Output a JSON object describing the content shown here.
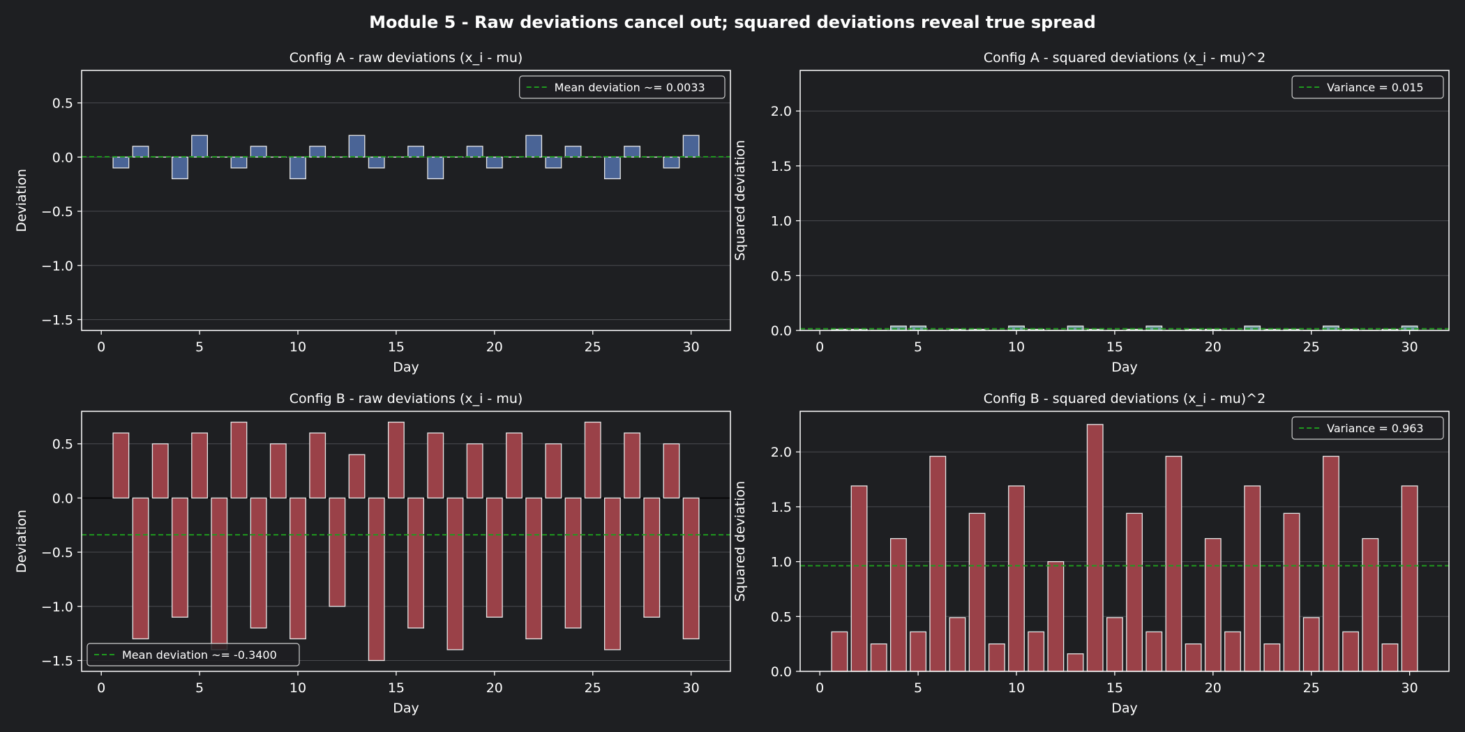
{
  "figure_title": "Module 5 - Raw deviations cancel out; squared deviations reveal true spread",
  "colors": {
    "background": "#1e1f22",
    "config_a_bar": "#4a6496",
    "config_a_sq_bar": "#6f9aa0",
    "config_b_bar": "#9a4148",
    "mean_line": "#1f9a1f",
    "text": "#ffffff",
    "grid": "#4a4b50"
  },
  "chart_data": [
    {
      "type": "bar",
      "title": "Config A - raw deviations (x_i - mu)",
      "xlabel": "Day",
      "ylabel": "Deviation",
      "xlim": [
        -1,
        32
      ],
      "ylim": [
        -1.6,
        0.8
      ],
      "xticks": [
        0,
        5,
        10,
        15,
        20,
        25,
        30
      ],
      "yticks": [
        -1.5,
        -1.0,
        -0.5,
        0.0,
        0.5
      ],
      "ytick_labels": [
        "−1.5",
        "−1.0",
        "−0.5",
        "0.0",
        "0.5"
      ],
      "grid": true,
      "legend_position": "top-right",
      "x": [
        1,
        2,
        3,
        4,
        5,
        6,
        7,
        8,
        9,
        10,
        11,
        12,
        13,
        14,
        15,
        16,
        17,
        18,
        19,
        20,
        21,
        22,
        23,
        24,
        25,
        26,
        27,
        28,
        29,
        30
      ],
      "values": [
        -0.1,
        0.1,
        0,
        -0.2,
        0.2,
        0,
        -0.1,
        0.1,
        0,
        -0.2,
        0.1,
        0,
        0.2,
        -0.1,
        0,
        0.1,
        -0.2,
        0,
        0.1,
        -0.1,
        0,
        0.2,
        -0.1,
        0.1,
        0,
        -0.2,
        0.1,
        0,
        -0.1,
        0.2
      ],
      "hline": {
        "label": "Mean deviation ~= 0.0033",
        "value": 0.0033
      }
    },
    {
      "type": "bar",
      "title": "Config A - squared deviations (x_i - mu)^2",
      "xlabel": "Day",
      "ylabel": "Squared deviation",
      "xlim": [
        -1,
        32
      ],
      "ylim": [
        0,
        2.37
      ],
      "xticks": [
        0,
        5,
        10,
        15,
        20,
        25,
        30
      ],
      "yticks": [
        0.0,
        0.5,
        1.0,
        1.5,
        2.0
      ],
      "ytick_labels": [
        "0.0",
        "0.5",
        "1.0",
        "1.5",
        "2.0"
      ],
      "grid": true,
      "legend_position": "top-right",
      "x": [
        1,
        2,
        3,
        4,
        5,
        6,
        7,
        8,
        9,
        10,
        11,
        12,
        13,
        14,
        15,
        16,
        17,
        18,
        19,
        20,
        21,
        22,
        23,
        24,
        25,
        26,
        27,
        28,
        29,
        30
      ],
      "values": [
        0.01,
        0.01,
        0,
        0.04,
        0.04,
        0,
        0.01,
        0.01,
        0,
        0.04,
        0.01,
        0,
        0.04,
        0.01,
        0,
        0.01,
        0.04,
        0,
        0.01,
        0.01,
        0,
        0.04,
        0.01,
        0.01,
        0,
        0.04,
        0.01,
        0,
        0.01,
        0.04
      ],
      "hline": {
        "label": "Variance = 0.015",
        "value": 0.015
      }
    },
    {
      "type": "bar",
      "title": "Config B - raw deviations (x_i - mu)",
      "xlabel": "Day",
      "ylabel": "Deviation",
      "xlim": [
        -1,
        32
      ],
      "ylim": [
        -1.6,
        0.8
      ],
      "xticks": [
        0,
        5,
        10,
        15,
        20,
        25,
        30
      ],
      "yticks": [
        -1.5,
        -1.0,
        -0.5,
        0.0,
        0.5
      ],
      "ytick_labels": [
        "−1.5",
        "−1.0",
        "−0.5",
        "0.0",
        "0.5"
      ],
      "grid": true,
      "zero_line": true,
      "legend_position": "bottom-left",
      "x": [
        1,
        2,
        3,
        4,
        5,
        6,
        7,
        8,
        9,
        10,
        11,
        12,
        13,
        14,
        15,
        16,
        17,
        18,
        19,
        20,
        21,
        22,
        23,
        24,
        25,
        26,
        27,
        28,
        29,
        30
      ],
      "values": [
        0.6,
        -1.3,
        0.5,
        -1.1,
        0.6,
        -1.4,
        0.7,
        -1.2,
        0.5,
        -1.3,
        0.6,
        -1.0,
        0.4,
        -1.5,
        0.7,
        -1.2,
        0.6,
        -1.4,
        0.5,
        -1.1,
        0.6,
        -1.3,
        0.5,
        -1.2,
        0.7,
        -1.4,
        0.6,
        -1.1,
        0.5,
        -1.3
      ],
      "hline": {
        "label": "Mean deviation ~= -0.3400",
        "value": -0.34
      }
    },
    {
      "type": "bar",
      "title": "Config B - squared deviations (x_i - mu)^2",
      "xlabel": "Day",
      "ylabel": "Squared deviation",
      "xlim": [
        -1,
        32
      ],
      "ylim": [
        0,
        2.37
      ],
      "xticks": [
        0,
        5,
        10,
        15,
        20,
        25,
        30
      ],
      "yticks": [
        0.0,
        0.5,
        1.0,
        1.5,
        2.0
      ],
      "ytick_labels": [
        "0.0",
        "0.5",
        "1.0",
        "1.5",
        "2.0"
      ],
      "grid": true,
      "legend_position": "top-right",
      "x": [
        1,
        2,
        3,
        4,
        5,
        6,
        7,
        8,
        9,
        10,
        11,
        12,
        13,
        14,
        15,
        16,
        17,
        18,
        19,
        20,
        21,
        22,
        23,
        24,
        25,
        26,
        27,
        28,
        29,
        30
      ],
      "values": [
        0.36,
        1.69,
        0.25,
        1.21,
        0.36,
        1.96,
        0.49,
        1.44,
        0.25,
        1.69,
        0.36,
        1.0,
        0.16,
        2.25,
        0.49,
        1.44,
        0.36,
        1.96,
        0.25,
        1.21,
        0.36,
        1.69,
        0.25,
        1.44,
        0.49,
        1.96,
        0.36,
        1.21,
        0.25,
        1.69
      ],
      "hline": {
        "label": "Variance = 0.963",
        "value": 0.963
      }
    }
  ]
}
